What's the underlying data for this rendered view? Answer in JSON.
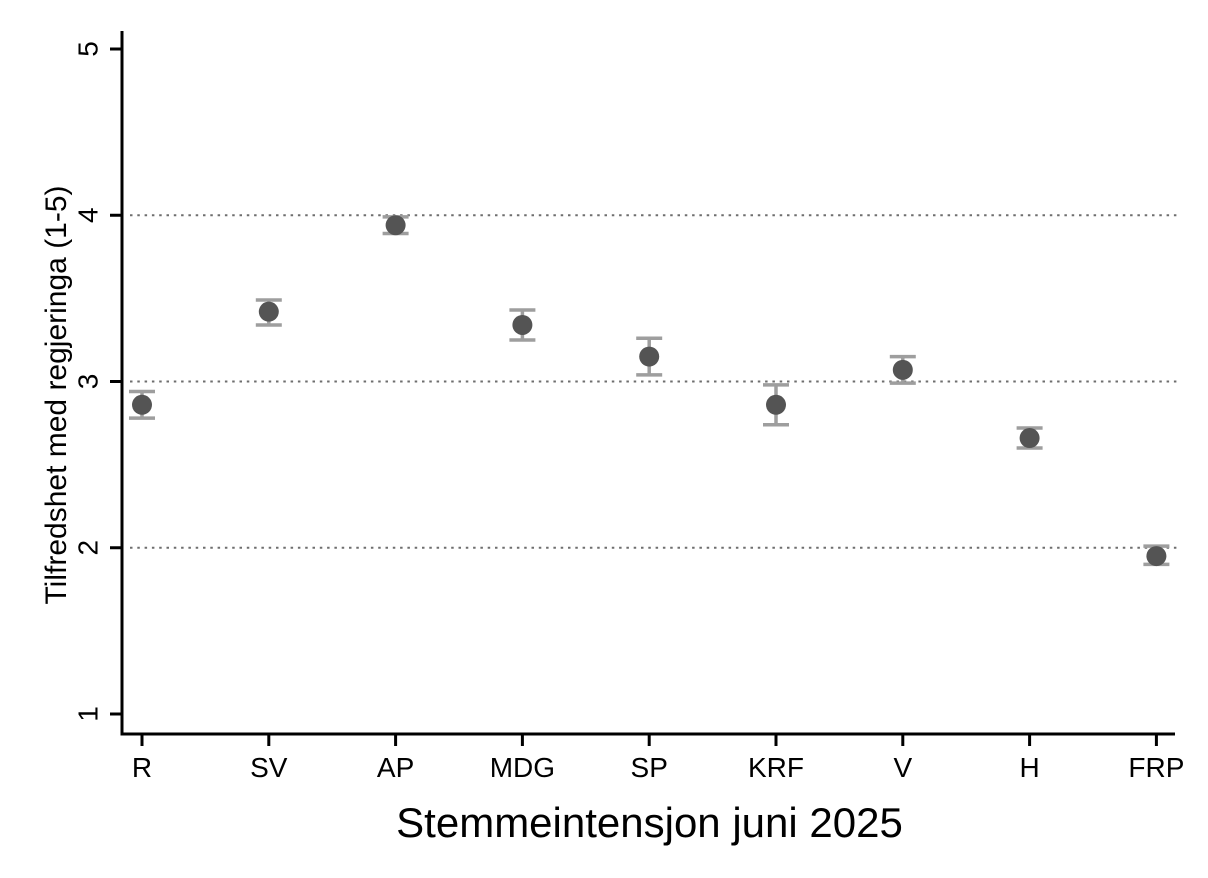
{
  "chart_data": {
    "type": "scatter",
    "subtype": "point-estimates-with-confidence-intervals",
    "title": "",
    "xlabel": "Stemmeintensjon juni 2025",
    "ylabel": "Tilfredshet med regjeringa (1-5)",
    "categories": [
      "R",
      "SV",
      "AP",
      "MDG",
      "SP",
      "KRF",
      "V",
      "H",
      "FRP"
    ],
    "series": [
      {
        "name": "Tilfredshet med regjeringa",
        "means": [
          2.86,
          3.42,
          3.94,
          3.34,
          3.15,
          2.86,
          3.07,
          2.66,
          1.95
        ],
        "ci_low": [
          2.78,
          3.34,
          3.89,
          3.25,
          3.04,
          2.74,
          2.99,
          2.6,
          1.9
        ],
        "ci_high": [
          2.94,
          3.49,
          3.99,
          3.43,
          3.26,
          2.98,
          3.15,
          2.72,
          2.01
        ]
      }
    ],
    "ylim": [
      1,
      5
    ],
    "yticks": [
      1,
      2,
      3,
      4,
      5
    ],
    "gridlines_at": [
      2,
      3,
      4
    ],
    "grid_style": "dotted horizontal",
    "legend": "none",
    "colors": {
      "marker": "#545454",
      "error_bar": "#9e9e9e",
      "axis": "#000000",
      "grid_dot": "#6e6e6e",
      "background": "#ffffff"
    }
  }
}
